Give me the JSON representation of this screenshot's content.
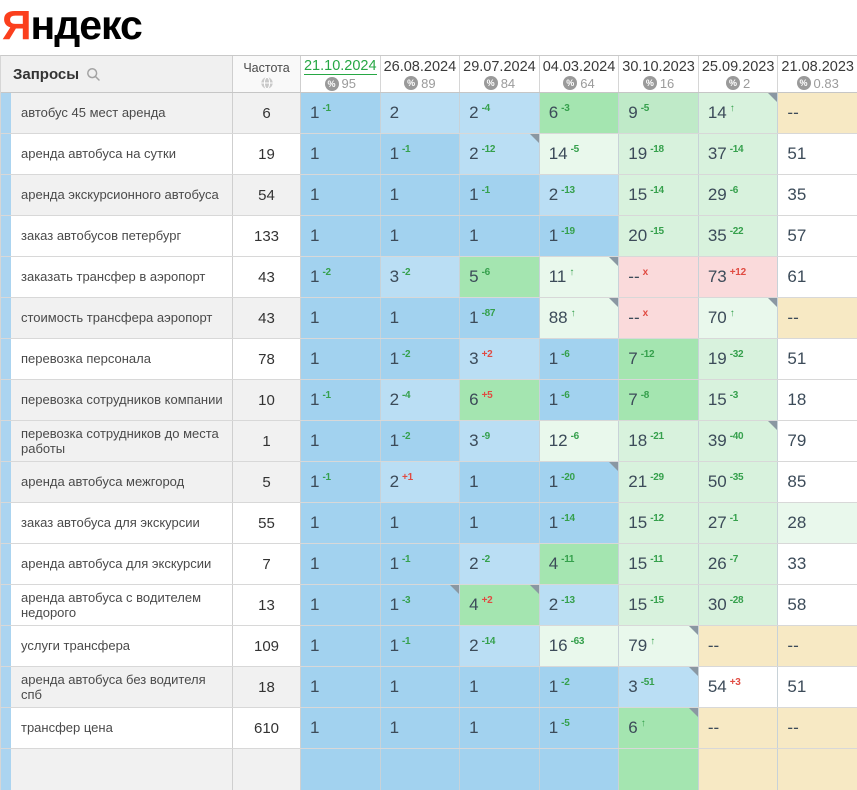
{
  "logo": {
    "ya": "Я",
    "ndeks": "ндекс"
  },
  "table": {
    "queries_header": "Запросы",
    "frequency_header": "Частота",
    "columns": [
      {
        "date": "21.10.2024",
        "value": "95",
        "active": true
      },
      {
        "date": "26.08.2024",
        "value": "89",
        "active": false
      },
      {
        "date": "29.07.2024",
        "value": "84",
        "active": false
      },
      {
        "date": "04.03.2024",
        "value": "64",
        "active": false
      },
      {
        "date": "30.10.2023",
        "value": "16",
        "active": false
      },
      {
        "date": "25.09.2023",
        "value": "2",
        "active": false
      },
      {
        "date": "21.08.2023",
        "value": "0.83",
        "active": false
      }
    ],
    "rows": [
      {
        "query": "автобус 45 мест аренда",
        "frequency": "6",
        "shade": true,
        "cells": [
          {
            "v": "1",
            "chg": "-1",
            "cc": "g",
            "bg": "b1"
          },
          {
            "v": "2",
            "bg": "b2"
          },
          {
            "v": "2",
            "chg": "-4",
            "cc": "g",
            "bg": "b2"
          },
          {
            "v": "6",
            "chg": "-3",
            "cc": "g",
            "bg": "g1"
          },
          {
            "v": "9",
            "chg": "-5",
            "cc": "g",
            "bg": "g2"
          },
          {
            "v": "14",
            "chg": "↑",
            "cc": "g",
            "bg": "g3",
            "corner": true
          },
          {
            "v": "--",
            "bg": "tan"
          }
        ]
      },
      {
        "query": "аренда автобуса на сутки",
        "frequency": "19",
        "shade": false,
        "cells": [
          {
            "v": "1",
            "bg": "b1"
          },
          {
            "v": "1",
            "chg": "-1",
            "cc": "g",
            "bg": "b1"
          },
          {
            "v": "2",
            "chg": "-12",
            "cc": "g",
            "bg": "b2",
            "corner": true
          },
          {
            "v": "14",
            "chg": "-5",
            "cc": "g",
            "bg": "g4"
          },
          {
            "v": "19",
            "chg": "-18",
            "cc": "g",
            "bg": "g3"
          },
          {
            "v": "37",
            "chg": "-14",
            "cc": "g",
            "bg": "g3"
          },
          {
            "v": "51",
            "bg": "w"
          }
        ]
      },
      {
        "query": "аренда экскурсионного автобуса",
        "frequency": "54",
        "shade": true,
        "cells": [
          {
            "v": "1",
            "bg": "b1"
          },
          {
            "v": "1",
            "bg": "b1"
          },
          {
            "v": "1",
            "chg": "-1",
            "cc": "g",
            "bg": "b1"
          },
          {
            "v": "2",
            "chg": "-13",
            "cc": "g",
            "bg": "b2"
          },
          {
            "v": "15",
            "chg": "-14",
            "cc": "g",
            "bg": "g3"
          },
          {
            "v": "29",
            "chg": "-6",
            "cc": "g",
            "bg": "g3"
          },
          {
            "v": "35",
            "bg": "w"
          }
        ]
      },
      {
        "query": "заказ автобусов петербург",
        "frequency": "133",
        "shade": false,
        "cells": [
          {
            "v": "1",
            "bg": "b1"
          },
          {
            "v": "1",
            "bg": "b1"
          },
          {
            "v": "1",
            "bg": "b1"
          },
          {
            "v": "1",
            "chg": "-19",
            "cc": "g",
            "bg": "b1"
          },
          {
            "v": "20",
            "chg": "-15",
            "cc": "g",
            "bg": "g3"
          },
          {
            "v": "35",
            "chg": "-22",
            "cc": "g",
            "bg": "g3"
          },
          {
            "v": "57",
            "bg": "w"
          }
        ]
      },
      {
        "query": "заказать трансфер в аэропорт",
        "frequency": "43",
        "shade": false,
        "cells": [
          {
            "v": "1",
            "chg": "-2",
            "cc": "g",
            "bg": "b1"
          },
          {
            "v": "3",
            "chg": "-2",
            "cc": "g",
            "bg": "b2"
          },
          {
            "v": "5",
            "chg": "-6",
            "cc": "g",
            "bg": "g1"
          },
          {
            "v": "11",
            "chg": "↑",
            "cc": "g",
            "bg": "g4",
            "corner": true
          },
          {
            "v": "--",
            "chg": "x",
            "cc": "r",
            "bg": "pink"
          },
          {
            "v": "73",
            "chg": "+12",
            "cc": "r",
            "bg": "pink"
          },
          {
            "v": "61",
            "bg": "w"
          }
        ]
      },
      {
        "query": "стоимость трансфера аэропорт",
        "frequency": "43",
        "shade": true,
        "cells": [
          {
            "v": "1",
            "bg": "b1"
          },
          {
            "v": "1",
            "bg": "b1"
          },
          {
            "v": "1",
            "chg": "-87",
            "cc": "g",
            "bg": "b1"
          },
          {
            "v": "88",
            "chg": "↑",
            "cc": "g",
            "bg": "g4",
            "corner": true
          },
          {
            "v": "--",
            "chg": "x",
            "cc": "r",
            "bg": "pink"
          },
          {
            "v": "70",
            "chg": "↑",
            "cc": "g",
            "bg": "g4",
            "corner": true
          },
          {
            "v": "--",
            "bg": "tan"
          }
        ]
      },
      {
        "query": "перевозка персонала",
        "frequency": "78",
        "shade": false,
        "cells": [
          {
            "v": "1",
            "bg": "b1"
          },
          {
            "v": "1",
            "chg": "-2",
            "cc": "g",
            "bg": "b1"
          },
          {
            "v": "3",
            "chg": "+2",
            "cc": "r",
            "bg": "b2"
          },
          {
            "v": "1",
            "chg": "-6",
            "cc": "g",
            "bg": "b1"
          },
          {
            "v": "7",
            "chg": "-12",
            "cc": "g",
            "bg": "g1"
          },
          {
            "v": "19",
            "chg": "-32",
            "cc": "g",
            "bg": "g3"
          },
          {
            "v": "51",
            "bg": "w"
          }
        ]
      },
      {
        "query": "перевозка сотрудников компании",
        "frequency": "10",
        "shade": true,
        "cells": [
          {
            "v": "1",
            "chg": "-1",
            "cc": "g",
            "bg": "b1"
          },
          {
            "v": "2",
            "chg": "-4",
            "cc": "g",
            "bg": "b2"
          },
          {
            "v": "6",
            "chg": "+5",
            "cc": "r",
            "bg": "g1"
          },
          {
            "v": "1",
            "chg": "-6",
            "cc": "g",
            "bg": "b1"
          },
          {
            "v": "7",
            "chg": "-8",
            "cc": "g",
            "bg": "g1"
          },
          {
            "v": "15",
            "chg": "-3",
            "cc": "g",
            "bg": "g3"
          },
          {
            "v": "18",
            "bg": "w"
          }
        ]
      },
      {
        "query": "перевозка сотрудников до места работы",
        "frequency": "1",
        "shade": true,
        "cells": [
          {
            "v": "1",
            "bg": "b1"
          },
          {
            "v": "1",
            "chg": "-2",
            "cc": "g",
            "bg": "b1"
          },
          {
            "v": "3",
            "chg": "-9",
            "cc": "g",
            "bg": "b2"
          },
          {
            "v": "12",
            "chg": "-6",
            "cc": "g",
            "bg": "g4"
          },
          {
            "v": "18",
            "chg": "-21",
            "cc": "g",
            "bg": "g3"
          },
          {
            "v": "39",
            "chg": "-40",
            "cc": "g",
            "bg": "g3",
            "corner": true
          },
          {
            "v": "79",
            "bg": "w"
          }
        ]
      },
      {
        "query": "аренда автобуса межгород",
        "frequency": "5",
        "shade": true,
        "cells": [
          {
            "v": "1",
            "chg": "-1",
            "cc": "g",
            "bg": "b1"
          },
          {
            "v": "2",
            "chg": "+1",
            "cc": "r",
            "bg": "b2"
          },
          {
            "v": "1",
            "bg": "b1"
          },
          {
            "v": "1",
            "chg": "-20",
            "cc": "g",
            "bg": "b1",
            "corner": true
          },
          {
            "v": "21",
            "chg": "-29",
            "cc": "g",
            "bg": "g3"
          },
          {
            "v": "50",
            "chg": "-35",
            "cc": "g",
            "bg": "g3"
          },
          {
            "v": "85",
            "bg": "w"
          }
        ]
      },
      {
        "query": "заказ автобуса для экскурсии",
        "frequency": "55",
        "shade": false,
        "cells": [
          {
            "v": "1",
            "bg": "b1"
          },
          {
            "v": "1",
            "bg": "b1"
          },
          {
            "v": "1",
            "bg": "b1"
          },
          {
            "v": "1",
            "chg": "-14",
            "cc": "g",
            "bg": "b1"
          },
          {
            "v": "15",
            "chg": "-12",
            "cc": "g",
            "bg": "g3"
          },
          {
            "v": "27",
            "chg": "-1",
            "cc": "g",
            "bg": "g3"
          },
          {
            "v": "28",
            "bg": "g4"
          }
        ]
      },
      {
        "query": "аренда автобуса для экскурсии",
        "frequency": "7",
        "shade": false,
        "cells": [
          {
            "v": "1",
            "bg": "b1"
          },
          {
            "v": "1",
            "chg": "-1",
            "cc": "g",
            "bg": "b1"
          },
          {
            "v": "2",
            "chg": "-2",
            "cc": "g",
            "bg": "b2"
          },
          {
            "v": "4",
            "chg": "-11",
            "cc": "g",
            "bg": "g1"
          },
          {
            "v": "15",
            "chg": "-11",
            "cc": "g",
            "bg": "g3"
          },
          {
            "v": "26",
            "chg": "-7",
            "cc": "g",
            "bg": "g3"
          },
          {
            "v": "33",
            "bg": "w"
          }
        ]
      },
      {
        "query": "аренда автобуса с водителем недорого",
        "frequency": "13",
        "shade": false,
        "cells": [
          {
            "v": "1",
            "bg": "b1"
          },
          {
            "v": "1",
            "chg": "-3",
            "cc": "g",
            "bg": "b1",
            "corner": true
          },
          {
            "v": "4",
            "chg": "+2",
            "cc": "r",
            "bg": "g1",
            "corner": true
          },
          {
            "v": "2",
            "chg": "-13",
            "cc": "g",
            "bg": "b2"
          },
          {
            "v": "15",
            "chg": "-15",
            "cc": "g",
            "bg": "g3"
          },
          {
            "v": "30",
            "chg": "-28",
            "cc": "g",
            "bg": "g3"
          },
          {
            "v": "58",
            "bg": "w"
          }
        ]
      },
      {
        "query": "услуги трансфера",
        "frequency": "109",
        "shade": false,
        "cells": [
          {
            "v": "1",
            "bg": "b1"
          },
          {
            "v": "1",
            "chg": "-1",
            "cc": "g",
            "bg": "b1"
          },
          {
            "v": "2",
            "chg": "-14",
            "cc": "g",
            "bg": "b2"
          },
          {
            "v": "16",
            "chg": "-63",
            "cc": "g",
            "bg": "g4"
          },
          {
            "v": "79",
            "chg": "↑",
            "cc": "g",
            "bg": "g4",
            "corner": true
          },
          {
            "v": "--",
            "bg": "tan"
          },
          {
            "v": "--",
            "bg": "tan"
          }
        ]
      },
      {
        "query": "аренда автобуса без водителя спб",
        "frequency": "18",
        "shade": true,
        "cells": [
          {
            "v": "1",
            "bg": "b1"
          },
          {
            "v": "1",
            "bg": "b1"
          },
          {
            "v": "1",
            "bg": "b1"
          },
          {
            "v": "1",
            "chg": "-2",
            "cc": "g",
            "bg": "b1"
          },
          {
            "v": "3",
            "chg": "-51",
            "cc": "g",
            "bg": "b2",
            "corner": true
          },
          {
            "v": "54",
            "chg": "+3",
            "cc": "r",
            "bg": "w"
          },
          {
            "v": "51",
            "bg": "w"
          }
        ]
      },
      {
        "query": "трансфер цена",
        "frequency": "610",
        "shade": false,
        "cells": [
          {
            "v": "1",
            "bg": "b1"
          },
          {
            "v": "1",
            "bg": "b1"
          },
          {
            "v": "1",
            "bg": "b1"
          },
          {
            "v": "1",
            "chg": "-5",
            "cc": "g",
            "bg": "b1"
          },
          {
            "v": "6",
            "chg": "↑",
            "cc": "g",
            "bg": "g1",
            "corner": true
          },
          {
            "v": "--",
            "bg": "tan"
          },
          {
            "v": "--",
            "bg": "tan"
          }
        ]
      },
      {
        "query": "",
        "frequency": "",
        "shade": true,
        "partial": true,
        "cells": [
          {
            "v": "",
            "bg": "b1"
          },
          {
            "v": "",
            "bg": "b1"
          },
          {
            "v": "",
            "bg": "b1"
          },
          {
            "v": "",
            "bg": "b1"
          },
          {
            "v": "",
            "bg": "g1"
          },
          {
            "v": "",
            "bg": "tan"
          },
          {
            "v": "",
            "bg": "tan"
          }
        ]
      }
    ]
  },
  "colors": {
    "logo_red": "#fb3f1d",
    "accent_green_link": "#27a744",
    "change_up_green": "#35a04c",
    "change_down_red": "#e04b42",
    "pos_blue": "#a2d2ef",
    "pos_blue_light": "#badef4",
    "pos_green_strong": "#a4e5b0",
    "pos_green_pale": "#d8f2dd",
    "dropped_pink": "#fadadb",
    "not_ranked_tan": "#f7e9c4",
    "select_strip_blue": "#abd4f0"
  }
}
